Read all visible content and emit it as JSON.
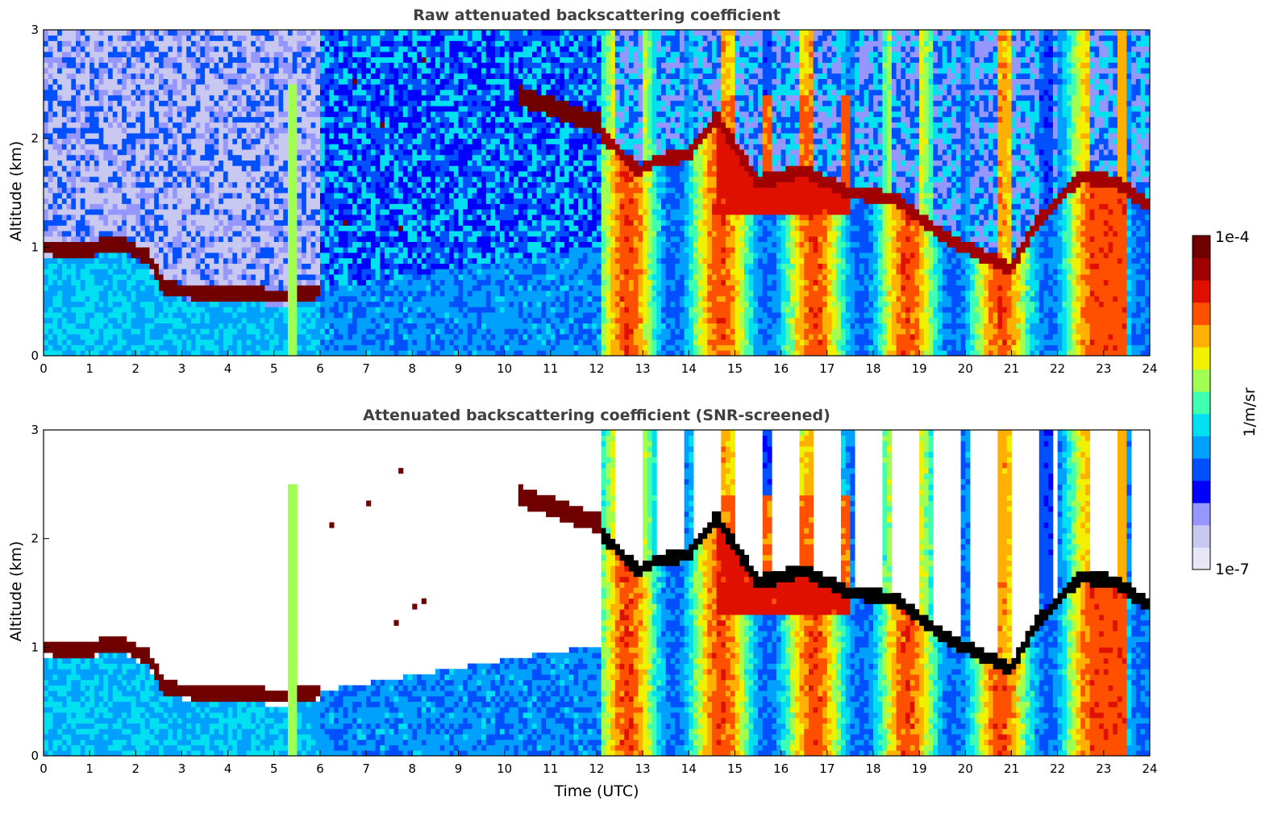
{
  "chart_data": [
    {
      "type": "heatmap",
      "title": "Raw attenuated backscattering coefficient",
      "xlabel": "",
      "ylabel": "Altitude (km)",
      "xlim": [
        0,
        24
      ],
      "ylim": [
        0,
        3
      ],
      "x_ticks": [
        "0",
        "1",
        "2",
        "3",
        "4",
        "5",
        "6",
        "7",
        "8",
        "9",
        "10",
        "11",
        "12",
        "13",
        "14",
        "15",
        "16",
        "17",
        "18",
        "19",
        "20",
        "21",
        "22",
        "23",
        "24"
      ],
      "y_ticks": [
        "0",
        "1",
        "2",
        "3"
      ],
      "screened": false,
      "cloud_layer_km": [
        {
          "t": 0.0,
          "z": 1.0
        },
        {
          "t": 1.0,
          "z": 0.98
        },
        {
          "t": 1.6,
          "z": 1.05
        },
        {
          "t": 2.3,
          "z": 0.9
        },
        {
          "t": 2.6,
          "z": 0.62
        },
        {
          "t": 4.0,
          "z": 0.56
        },
        {
          "t": 5.5,
          "z": 0.55
        },
        {
          "t": 6.0,
          "z": 0.6
        },
        {
          "t": 12.1,
          "z": 2.05
        },
        {
          "t": 12.9,
          "z": 1.7
        },
        {
          "t": 13.3,
          "z": 1.8
        },
        {
          "t": 14.0,
          "z": 1.85
        },
        {
          "t": 14.6,
          "z": 2.2
        },
        {
          "t": 15.5,
          "z": 1.6
        },
        {
          "t": 16.5,
          "z": 1.7
        },
        {
          "t": 17.5,
          "z": 1.5
        },
        {
          "t": 18.5,
          "z": 1.45
        },
        {
          "t": 19.5,
          "z": 1.1
        },
        {
          "t": 20.0,
          "z": 1.0
        },
        {
          "t": 21.0,
          "z": 0.8
        },
        {
          "t": 21.5,
          "z": 1.2
        },
        {
          "t": 22.5,
          "z": 1.65
        },
        {
          "t": 23.3,
          "z": 1.6
        },
        {
          "t": 23.9,
          "z": 1.4
        }
      ]
    },
    {
      "type": "heatmap",
      "title": "Attenuated backscattering coefficient (SNR-screened)",
      "xlabel": "Time (UTC)",
      "ylabel": "Altitude (km)",
      "xlim": [
        0,
        24
      ],
      "ylim": [
        0,
        3
      ],
      "x_ticks": [
        "0",
        "1",
        "2",
        "3",
        "4",
        "5",
        "6",
        "7",
        "8",
        "9",
        "10",
        "11",
        "12",
        "13",
        "14",
        "15",
        "16",
        "17",
        "18",
        "19",
        "20",
        "21",
        "22",
        "23",
        "24"
      ],
      "y_ticks": [
        "0",
        "1",
        "2",
        "3"
      ],
      "screened": true
    }
  ],
  "colorbar": {
    "label": "1/m/sr",
    "max_label": "1e-4",
    "min_label": "1e-7",
    "colors": [
      "#e6e6f5",
      "#c8c8f0",
      "#9696ff",
      "#0000ff",
      "#0050ff",
      "#00a0ff",
      "#00e0f0",
      "#40ffb0",
      "#a0ff50",
      "#f0f000",
      "#ffb000",
      "#ff5000",
      "#e01000",
      "#a00000",
      "#700000"
    ]
  }
}
